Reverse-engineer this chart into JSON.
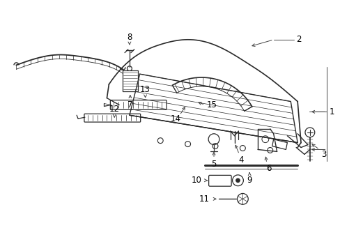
{
  "background_color": "#ffffff",
  "line_color": "#2a2a2a",
  "label_color": "#000000",
  "figsize": [
    4.89,
    3.6
  ],
  "dpi": 100,
  "arrow_color": "#444444",
  "label_fontsize": 8.5
}
